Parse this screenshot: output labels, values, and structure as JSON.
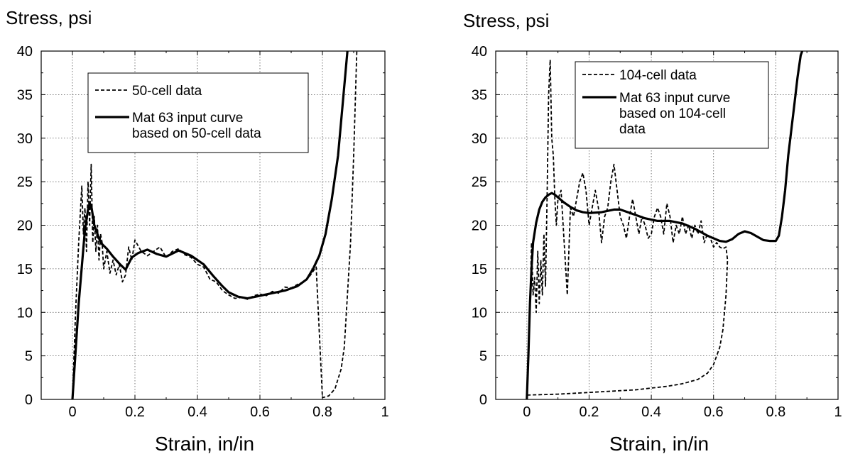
{
  "chart_data": [
    {
      "type": "line",
      "ylabel": "Stress, psi",
      "xlabel": "Strain, in/in",
      "xlim": [
        -0.1,
        1.0
      ],
      "ylim": [
        0,
        40
      ],
      "xticks": [
        0,
        0.2,
        0.4,
        0.6,
        0.8,
        1
      ],
      "xtick_labels": [
        "0",
        "0.2",
        "0.4",
        "0.6",
        "0.8",
        "1"
      ],
      "yticks": [
        0,
        5,
        10,
        15,
        20,
        25,
        30,
        35,
        40
      ],
      "ytick_labels": [
        "0",
        "5",
        "10",
        "15",
        "20",
        "25",
        "30",
        "35",
        "40"
      ],
      "grid": true,
      "legend_position": "top-center",
      "series": [
        {
          "name": "50-cell data",
          "style": "dashed",
          "x": [
            0,
            0.01,
            0.02,
            0.03,
            0.035,
            0.04,
            0.045,
            0.05,
            0.055,
            0.06,
            0.065,
            0.07,
            0.075,
            0.08,
            0.085,
            0.09,
            0.095,
            0.1,
            0.11,
            0.12,
            0.13,
            0.14,
            0.15,
            0.16,
            0.17,
            0.18,
            0.19,
            0.2,
            0.22,
            0.24,
            0.26,
            0.28,
            0.3,
            0.32,
            0.34,
            0.36,
            0.38,
            0.4,
            0.42,
            0.44,
            0.46,
            0.48,
            0.5,
            0.52,
            0.54,
            0.56,
            0.58,
            0.6,
            0.62,
            0.64,
            0.66,
            0.68,
            0.7,
            0.72,
            0.74,
            0.76,
            0.78,
            0.8,
            0.82,
            0.84,
            0.86,
            0.87,
            0.88,
            0.89,
            0.9,
            0.91
          ],
          "y": [
            0,
            10,
            18,
            24.5,
            19,
            22,
            17,
            25,
            20,
            27,
            18,
            21,
            17,
            20,
            16,
            19,
            18,
            15,
            17,
            14.5,
            16,
            14.3,
            15.5,
            13.5,
            14.3,
            17.5,
            16,
            18.3,
            17,
            16.5,
            17,
            17.5,
            16.3,
            17,
            17.3,
            16.6,
            16.3,
            15.5,
            15.2,
            13.8,
            13.5,
            12.5,
            12,
            11.6,
            11.7,
            11.5,
            11.9,
            12.1,
            11.9,
            12.4,
            12.2,
            12.9,
            12.8,
            13.2,
            13.5,
            14.2,
            15.2,
            0.2,
            0.4,
            1.2,
            3.5,
            6,
            12,
            18,
            28,
            40
          ]
        },
        {
          "name": "Mat 63 input curve\nbased on 50-cell data",
          "style": "solid",
          "x": [
            0,
            0.02,
            0.04,
            0.05,
            0.055,
            0.06,
            0.07,
            0.09,
            0.11,
            0.13,
            0.15,
            0.17,
            0.19,
            0.21,
            0.24,
            0.27,
            0.3,
            0.34,
            0.38,
            0.42,
            0.45,
            0.48,
            0.5,
            0.53,
            0.56,
            0.6,
            0.64,
            0.68,
            0.72,
            0.75,
            0.77,
            0.79,
            0.81,
            0.83,
            0.85,
            0.86,
            0.87,
            0.88
          ],
          "y": [
            0,
            11,
            19.5,
            21.8,
            22.5,
            22.3,
            20,
            18,
            17.3,
            16.4,
            15.6,
            14.9,
            16.3,
            16.8,
            17.2,
            16.7,
            16.4,
            17.1,
            16.5,
            15.5,
            14.2,
            13,
            12.3,
            11.8,
            11.6,
            11.9,
            12.2,
            12.5,
            13,
            13.8,
            15,
            16.5,
            19,
            23,
            28,
            32,
            36,
            40
          ]
        }
      ]
    },
    {
      "type": "line",
      "ylabel": "Stress, psi",
      "xlabel": "Strain, in/in",
      "xlim": [
        -0.1,
        1.0
      ],
      "ylim": [
        0,
        40
      ],
      "xticks": [
        0,
        0.2,
        0.4,
        0.6,
        0.8,
        1
      ],
      "xtick_labels": [
        "0",
        "0.2",
        "0.4",
        "0.6",
        "0.8",
        "1"
      ],
      "yticks": [
        0,
        5,
        10,
        15,
        20,
        25,
        30,
        35,
        40
      ],
      "ytick_labels": [
        "0",
        "5",
        "10",
        "15",
        "20",
        "25",
        "30",
        "35",
        "40"
      ],
      "grid": true,
      "legend_position": "top-center",
      "series": [
        {
          "name": "104-cell data",
          "style": "dashed",
          "x": [
            0,
            0.01,
            0.015,
            0.02,
            0.025,
            0.03,
            0.035,
            0.04,
            0.045,
            0.05,
            0.055,
            0.06,
            0.065,
            0.07,
            0.075,
            0.08,
            0.085,
            0.09,
            0.095,
            0.1,
            0.11,
            0.12,
            0.13,
            0.14,
            0.15,
            0.16,
            0.17,
            0.18,
            0.19,
            0.2,
            0.21,
            0.22,
            0.23,
            0.24,
            0.25,
            0.26,
            0.27,
            0.28,
            0.29,
            0.3,
            0.31,
            0.32,
            0.33,
            0.34,
            0.35,
            0.36,
            0.37,
            0.38,
            0.39,
            0.4,
            0.41,
            0.42,
            0.43,
            0.44,
            0.45,
            0.46,
            0.47,
            0.48,
            0.49,
            0.5,
            0.51,
            0.52,
            0.53,
            0.54,
            0.55,
            0.56,
            0.57,
            0.58,
            0.59,
            0.6,
            0.61,
            0.62,
            0.63,
            0.64,
            0.645,
            0.64,
            0.63,
            0.62,
            0.6,
            0.58,
            0.55,
            0.5,
            0.45,
            0.4,
            0.35,
            0.3,
            0.2,
            0.1,
            0
          ],
          "y": [
            0.5,
            10,
            18,
            12,
            14,
            10,
            17,
            11,
            16,
            12,
            19,
            13,
            23,
            35,
            39,
            30,
            28,
            23,
            20,
            23,
            24,
            18,
            12,
            22,
            21,
            23,
            25,
            26,
            24,
            20,
            22,
            24,
            22,
            18,
            21,
            22,
            25,
            27,
            24,
            21,
            20,
            18.5,
            21,
            23,
            21,
            19,
            21,
            20,
            18.5,
            19,
            21,
            22,
            21,
            19,
            22.5,
            21,
            18,
            20,
            19,
            21,
            19,
            20,
            18.5,
            20,
            19,
            20.5,
            18,
            19,
            18.5,
            17.5,
            18,
            17.5,
            17.3,
            17.5,
            16,
            12,
            8,
            6,
            4,
            3,
            2.3,
            1.8,
            1.5,
            1.3,
            1.1,
            1.0,
            0.8,
            0.6,
            0.5
          ]
        },
        {
          "name": "Mat 63 input curve\nbased on 104-cell\ndata",
          "style": "solid",
          "x": [
            0,
            0.005,
            0.01,
            0.015,
            0.02,
            0.03,
            0.04,
            0.05,
            0.06,
            0.07,
            0.08,
            0.09,
            0.1,
            0.12,
            0.14,
            0.16,
            0.18,
            0.2,
            0.24,
            0.28,
            0.3,
            0.34,
            0.38,
            0.42,
            0.46,
            0.5,
            0.54,
            0.58,
            0.62,
            0.64,
            0.66,
            0.68,
            0.7,
            0.72,
            0.74,
            0.76,
            0.78,
            0.8,
            0.81,
            0.82,
            0.83,
            0.84,
            0.85,
            0.86,
            0.87,
            0.88,
            0.885
          ],
          "y": [
            0,
            5,
            11,
            15,
            18,
            20.3,
            21.8,
            22.7,
            23.2,
            23.5,
            23.7,
            23.5,
            23.2,
            22.6,
            22.1,
            21.7,
            21.5,
            21.4,
            21.5,
            21.8,
            21.8,
            21.3,
            20.8,
            20.5,
            20.5,
            20.2,
            19.6,
            18.8,
            18.2,
            18.1,
            18.4,
            19,
            19.3,
            19.1,
            18.7,
            18.3,
            18.2,
            18.2,
            18.8,
            21,
            24,
            28,
            31,
            34,
            37,
            39.5,
            40
          ]
        }
      ]
    }
  ]
}
